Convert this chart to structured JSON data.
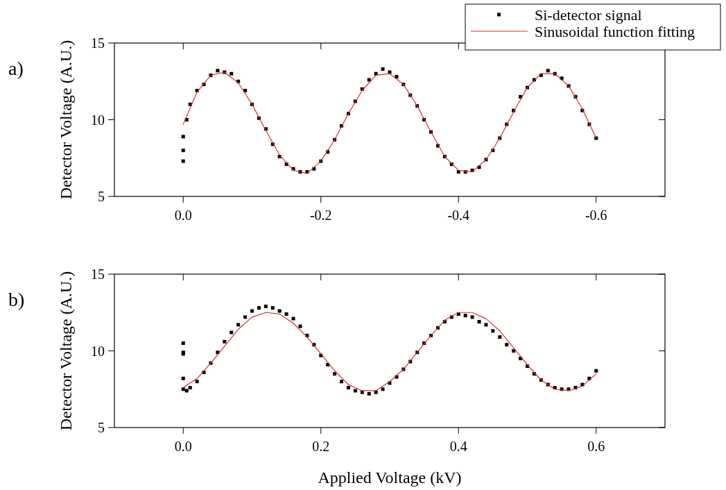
{
  "chart_data": [
    {
      "type": "scatter",
      "annotations": [
        "a)"
      ],
      "ylabel": "Detector Voltage (A.U.)",
      "xlim": [
        0.1,
        -0.7
      ],
      "xticks": [
        {
          "value": 0,
          "label": "0.0"
        },
        -0.2,
        -0.4,
        -0.6
      ],
      "ylim": [
        5,
        15
      ],
      "yticks": [
        5,
        10,
        15
      ],
      "legend": "top right",
      "grid": false,
      "series": [
        {
          "name": "Si-detector signal",
          "type": "scatter",
          "marker": "square",
          "color": "#000000",
          "x": [
            0,
            0,
            0,
            -0.005,
            -0.01,
            -0.02,
            -0.03,
            -0.04,
            -0.05,
            -0.06,
            -0.07,
            -0.08,
            -0.09,
            -0.1,
            -0.11,
            -0.12,
            -0.13,
            -0.14,
            -0.15,
            -0.16,
            -0.17,
            -0.18,
            -0.19,
            -0.2,
            -0.21,
            -0.22,
            -0.23,
            -0.24,
            -0.25,
            -0.26,
            -0.27,
            -0.28,
            -0.29,
            -0.3,
            -0.31,
            -0.32,
            -0.33,
            -0.34,
            -0.35,
            -0.36,
            -0.37,
            -0.38,
            -0.39,
            -0.4,
            -0.41,
            -0.42,
            -0.43,
            -0.44,
            -0.45,
            -0.46,
            -0.47,
            -0.48,
            -0.49,
            -0.5,
            -0.51,
            -0.52,
            -0.53,
            -0.54,
            -0.55,
            -0.56,
            -0.57,
            -0.58,
            -0.59,
            -0.6
          ],
          "values": [
            8.9,
            8.0,
            7.3,
            10.0,
            11.0,
            11.9,
            12.3,
            12.9,
            13.2,
            13.1,
            13.0,
            12.5,
            11.9,
            11.0,
            10.1,
            9.4,
            8.4,
            7.6,
            7.1,
            6.8,
            6.6,
            6.6,
            6.8,
            7.3,
            7.9,
            8.7,
            9.6,
            10.4,
            11.2,
            12.0,
            12.6,
            13.0,
            13.3,
            13.1,
            12.8,
            12.3,
            11.6,
            10.9,
            10.0,
            9.2,
            8.3,
            7.6,
            7.1,
            6.6,
            6.6,
            6.7,
            6.9,
            7.4,
            8.0,
            8.8,
            9.7,
            10.6,
            11.5,
            12.1,
            12.6,
            12.9,
            13.2,
            13.0,
            12.7,
            12.2,
            11.5,
            10.6,
            9.7,
            8.8
          ]
        },
        {
          "name": "Sinusoidal function fitting",
          "type": "line",
          "line_style": "solid",
          "color": "#d03030",
          "x": [
            0,
            -0.02,
            -0.04,
            -0.06,
            -0.08,
            -0.1,
            -0.12,
            -0.14,
            -0.16,
            -0.18,
            -0.2,
            -0.22,
            -0.24,
            -0.26,
            -0.28,
            -0.3,
            -0.32,
            -0.34,
            -0.36,
            -0.38,
            -0.4,
            -0.42,
            -0.44,
            -0.46,
            -0.48,
            -0.5,
            -0.52,
            -0.54,
            -0.56,
            -0.58,
            -0.6
          ],
          "values": [
            9.7,
            11.8,
            12.9,
            13.1,
            12.4,
            11.0,
            9.3,
            7.7,
            6.7,
            6.5,
            7.3,
            8.7,
            10.4,
            11.9,
            12.9,
            13.0,
            12.3,
            10.9,
            9.2,
            7.6,
            6.7,
            6.6,
            7.4,
            8.8,
            10.5,
            12.1,
            13.0,
            13.0,
            12.2,
            10.7,
            8.8
          ]
        }
      ]
    },
    {
      "type": "scatter",
      "annotations": [
        "b)"
      ],
      "xlabel": "Applied Voltage (kV)",
      "ylabel": "Detector Voltage (A.U.)",
      "xlim": [
        -0.1,
        0.7
      ],
      "xticks": [
        {
          "value": 0,
          "label": "0.0"
        },
        0.2,
        0.4,
        0.6
      ],
      "ylim": [
        5,
        15
      ],
      "yticks": [
        5,
        10,
        15
      ],
      "legend": false,
      "grid": false,
      "series": [
        {
          "type": "scatter",
          "marker": "square",
          "color": "#000000",
          "x": [
            0,
            0,
            0,
            0,
            0,
            0.005,
            0.01,
            0.02,
            0.03,
            0.04,
            0.05,
            0.06,
            0.07,
            0.08,
            0.09,
            0.1,
            0.11,
            0.12,
            0.13,
            0.14,
            0.15,
            0.16,
            0.17,
            0.18,
            0.19,
            0.2,
            0.21,
            0.22,
            0.23,
            0.24,
            0.25,
            0.26,
            0.27,
            0.28,
            0.29,
            0.3,
            0.31,
            0.32,
            0.33,
            0.34,
            0.35,
            0.36,
            0.37,
            0.38,
            0.39,
            0.4,
            0.41,
            0.42,
            0.43,
            0.44,
            0.45,
            0.46,
            0.47,
            0.48,
            0.49,
            0.5,
            0.51,
            0.52,
            0.53,
            0.54,
            0.55,
            0.56,
            0.57,
            0.58,
            0.59,
            0.6
          ],
          "values": [
            10.5,
            9.8,
            9.9,
            8.2,
            7.5,
            7.4,
            7.6,
            8.0,
            8.6,
            9.2,
            9.9,
            10.6,
            11.2,
            11.7,
            12.2,
            12.6,
            12.8,
            12.9,
            12.8,
            12.6,
            12.4,
            12.1,
            11.6,
            11.0,
            10.4,
            9.7,
            9.1,
            8.5,
            8.0,
            7.6,
            7.4,
            7.3,
            7.2,
            7.3,
            7.5,
            7.9,
            8.3,
            8.8,
            9.3,
            9.9,
            10.5,
            11.0,
            11.5,
            11.9,
            12.2,
            12.4,
            12.3,
            12.2,
            11.9,
            11.7,
            11.3,
            10.9,
            10.4,
            10.0,
            9.5,
            9.0,
            8.5,
            8.1,
            7.8,
            7.6,
            7.5,
            7.5,
            7.6,
            7.8,
            8.2,
            8.7
          ]
        },
        {
          "type": "line",
          "line_style": "solid",
          "color": "#d03030",
          "x": [
            0,
            0.02,
            0.04,
            0.06,
            0.08,
            0.1,
            0.12,
            0.14,
            0.16,
            0.18,
            0.2,
            0.22,
            0.24,
            0.26,
            0.28,
            0.3,
            0.32,
            0.34,
            0.36,
            0.38,
            0.4,
            0.42,
            0.44,
            0.46,
            0.48,
            0.5,
            0.52,
            0.54,
            0.56,
            0.58,
            0.6
          ],
          "values": [
            7.6,
            8.2,
            9.2,
            10.3,
            11.4,
            12.2,
            12.5,
            12.4,
            11.8,
            10.9,
            9.8,
            8.7,
            7.8,
            7.4,
            7.4,
            8.0,
            8.8,
            9.9,
            11.0,
            12.0,
            12.5,
            12.5,
            12.1,
            11.3,
            10.2,
            9.1,
            8.1,
            7.5,
            7.4,
            7.7,
            8.5
          ]
        }
      ]
    }
  ]
}
